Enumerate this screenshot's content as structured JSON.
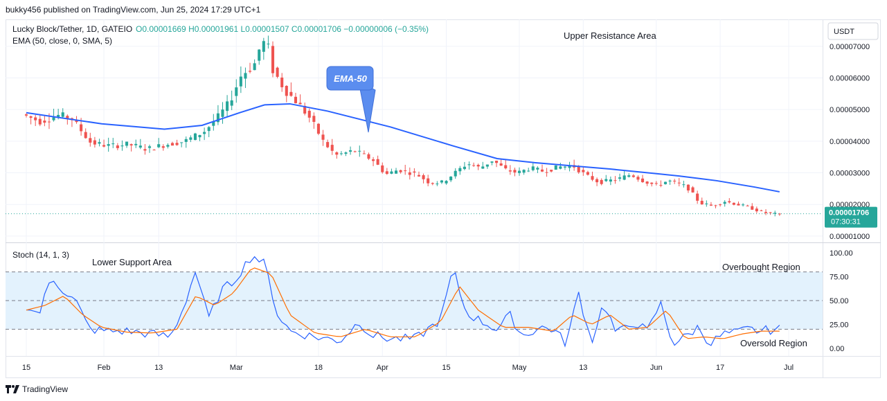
{
  "header": {
    "published": "bukky456 published on TradingView.com, Jun 25, 2024 17:29 UTC+1"
  },
  "legend": {
    "symbol": "Lucky Block/Tether, 1D, GATEIO",
    "ohlc": "O0.00001669 H0.00001961 L0.00001507 C0.00001706 −0.00000006 (−0.35%)",
    "ema": "EMA (50, close, 0, SMA, 5)"
  },
  "currency": "USDT",
  "price_tag": {
    "price": "0.00001706",
    "countdown": "07:30:31"
  },
  "annotations": {
    "upper": "Upper Resistance Area",
    "lower": "Lower Support Area",
    "ema_callout": "EMA-50",
    "overbought": "Overbought Region",
    "oversold": "Oversold Region"
  },
  "colors": {
    "up": "#26a69a",
    "down": "#ef5350",
    "ema": "#2962ff",
    "stoch_k": "#2962ff",
    "stoch_d": "#ff6d00",
    "band": "#e3f2fd",
    "callout": "#5b8def"
  },
  "footer": {
    "brand": "TradingView"
  },
  "chart_data": [
    {
      "type": "candlestick",
      "title": "Lucky Block/Tether, 1D, GATEIO",
      "ylim": [
        8e-06,
        7.85e-05
      ],
      "y_ticks": [
        "0.00007000",
        "0.00006000",
        "0.00005000",
        "0.00004000",
        "0.00003000",
        "0.00002000",
        "0.00001000"
      ],
      "x_ticks": [
        "15",
        "Feb",
        "13",
        "Mar",
        "18",
        "Apr",
        "15",
        "May",
        "13",
        "Jun",
        "17",
        "Jul"
      ],
      "x_tick_days": [
        0,
        17,
        29,
        46,
        64,
        78,
        92,
        108,
        122,
        138,
        152,
        167
      ],
      "last_close": 1.706e-05,
      "price_anchors": [
        [
          0,
          4.85e-05
        ],
        [
          3,
          4.62e-05
        ],
        [
          6,
          4.83e-05
        ],
        [
          8,
          4.7e-05
        ],
        [
          11,
          3.95e-05
        ],
        [
          14,
          3.85e-05
        ],
        [
          17,
          3.9e-05
        ],
        [
          20,
          3.75e-05
        ],
        [
          23,
          3.9e-05
        ],
        [
          26,
          4e-05
        ],
        [
          29,
          4.3e-05
        ],
        [
          31,
          4.7e-05
        ],
        [
          33,
          5.2e-05
        ],
        [
          35,
          6.1e-05
        ],
        [
          37,
          6.4e-05
        ],
        [
          38,
          7e-05
        ],
        [
          39,
          7.2e-05
        ],
        [
          40,
          6.25e-05
        ],
        [
          42,
          5.6e-05
        ],
        [
          44,
          5.2e-05
        ],
        [
          46,
          4.7e-05
        ],
        [
          48,
          4e-05
        ],
        [
          50,
          3.55e-05
        ],
        [
          53,
          3.7e-05
        ],
        [
          56,
          3.4e-05
        ],
        [
          58,
          2.95e-05
        ],
        [
          60,
          3.1e-05
        ],
        [
          63,
          2.95e-05
        ],
        [
          65,
          2.68e-05
        ],
        [
          67,
          2.7e-05
        ],
        [
          69,
          3e-05
        ],
        [
          71,
          3.3e-05
        ],
        [
          73,
          3.15e-05
        ],
        [
          75,
          3.4e-05
        ],
        [
          77,
          3.1e-05
        ],
        [
          79,
          3e-05
        ],
        [
          81,
          3.15e-05
        ],
        [
          83,
          3.05e-05
        ],
        [
          86,
          3.2e-05
        ],
        [
          88,
          3.2e-05
        ],
        [
          90,
          2.9e-05
        ],
        [
          92,
          2.7e-05
        ],
        [
          95,
          2.8e-05
        ],
        [
          97,
          2.95e-05
        ],
        [
          99,
          2.75e-05
        ],
        [
          101,
          2.6e-05
        ],
        [
          103,
          2.75e-05
        ],
        [
          106,
          2.55e-05
        ],
        [
          108,
          2.05e-05
        ],
        [
          110,
          1.95e-05
        ],
        [
          112,
          2.1e-05
        ],
        [
          114,
          2e-05
        ],
        [
          116,
          1.9e-05
        ],
        [
          118,
          1.75e-05
        ],
        [
          120,
          1.7e-05
        ]
      ],
      "anchor_day_span": 120,
      "ema50": {
        "name": "EMA-50",
        "points": [
          [
            0,
            4.9e-05
          ],
          [
            12,
            4.55e-05
          ],
          [
            22,
            4.38e-05
          ],
          [
            28,
            4.5e-05
          ],
          [
            34,
            4.9e-05
          ],
          [
            38,
            5.15e-05
          ],
          [
            42,
            5.18e-05
          ],
          [
            48,
            4.95e-05
          ],
          [
            58,
            4.45e-05
          ],
          [
            68,
            3.85e-05
          ],
          [
            75,
            3.45e-05
          ],
          [
            81,
            3.32e-05
          ],
          [
            87,
            3.22e-05
          ],
          [
            93,
            3.12e-05
          ],
          [
            100,
            2.98e-05
          ],
          [
            104,
            2.9e-05
          ],
          [
            110,
            2.75e-05
          ],
          [
            116,
            2.55e-05
          ],
          [
            120,
            2.4e-05
          ]
        ]
      }
    },
    {
      "type": "line",
      "title": "Stoch (14, 1, 3)",
      "ylim": [
        -8,
        108
      ],
      "y_ticks": [
        "100.00",
        "75.00",
        "50.00",
        "25.00",
        "0.00"
      ],
      "levels": [
        80,
        50,
        20
      ],
      "series": [
        {
          "name": "%K",
          "anchors": [
            [
              0,
              45
            ],
            [
              2,
              35
            ],
            [
              4,
              75
            ],
            [
              6,
              60
            ],
            [
              8,
              48
            ],
            [
              10,
              20
            ],
            [
              13,
              18
            ],
            [
              16,
              18
            ],
            [
              20,
              15
            ],
            [
              23,
              12
            ],
            [
              25,
              42
            ],
            [
              27,
              82
            ],
            [
              29,
              30
            ],
            [
              31,
              60
            ],
            [
              33,
              70
            ],
            [
              36,
              98
            ],
            [
              38,
              88
            ],
            [
              40,
              36
            ],
            [
              42,
              18
            ],
            [
              46,
              12
            ],
            [
              50,
              8
            ],
            [
              53,
              28
            ],
            [
              55,
              14
            ],
            [
              58,
              10
            ],
            [
              62,
              10
            ],
            [
              66,
              30
            ],
            [
              68,
              83
            ],
            [
              70,
              38
            ],
            [
              72,
              30
            ],
            [
              75,
              20
            ],
            [
              77,
              35
            ],
            [
              79,
              13
            ],
            [
              82,
              22
            ],
            [
              84,
              20
            ],
            [
              86,
              5
            ],
            [
              88,
              58
            ],
            [
              90,
              6
            ],
            [
              92,
              48
            ],
            [
              94,
              15
            ],
            [
              97,
              28
            ],
            [
              99,
              17
            ],
            [
              101,
              48
            ],
            [
              103,
              5
            ],
            [
              105,
              12
            ],
            [
              107,
              22
            ],
            [
              109,
              5
            ],
            [
              111,
              15
            ],
            [
              113,
              16
            ],
            [
              115,
              20
            ],
            [
              117,
              18
            ],
            [
              119,
              20
            ]
          ]
        },
        {
          "name": "%D",
          "anchors": [
            [
              0,
              40
            ],
            [
              3,
              45
            ],
            [
              6,
              55
            ],
            [
              9,
              35
            ],
            [
              12,
              22
            ],
            [
              16,
              17
            ],
            [
              20,
              16
            ],
            [
              24,
              20
            ],
            [
              27,
              55
            ],
            [
              30,
              45
            ],
            [
              33,
              58
            ],
            [
              36,
              85
            ],
            [
              39,
              78
            ],
            [
              42,
              35
            ],
            [
              46,
              16
            ],
            [
              50,
              12
            ],
            [
              54,
              20
            ],
            [
              58,
              12
            ],
            [
              62,
              12
            ],
            [
              66,
              28
            ],
            [
              69,
              65
            ],
            [
              72,
              40
            ],
            [
              76,
              22
            ],
            [
              80,
              22
            ],
            [
              84,
              18
            ],
            [
              87,
              35
            ],
            [
              90,
              25
            ],
            [
              93,
              35
            ],
            [
              96,
              20
            ],
            [
              99,
              22
            ],
            [
              102,
              40
            ],
            [
              105,
              10
            ],
            [
              108,
              12
            ],
            [
              111,
              10
            ],
            [
              114,
              15
            ],
            [
              117,
              18
            ],
            [
              119,
              18
            ]
          ]
        }
      ]
    }
  ]
}
